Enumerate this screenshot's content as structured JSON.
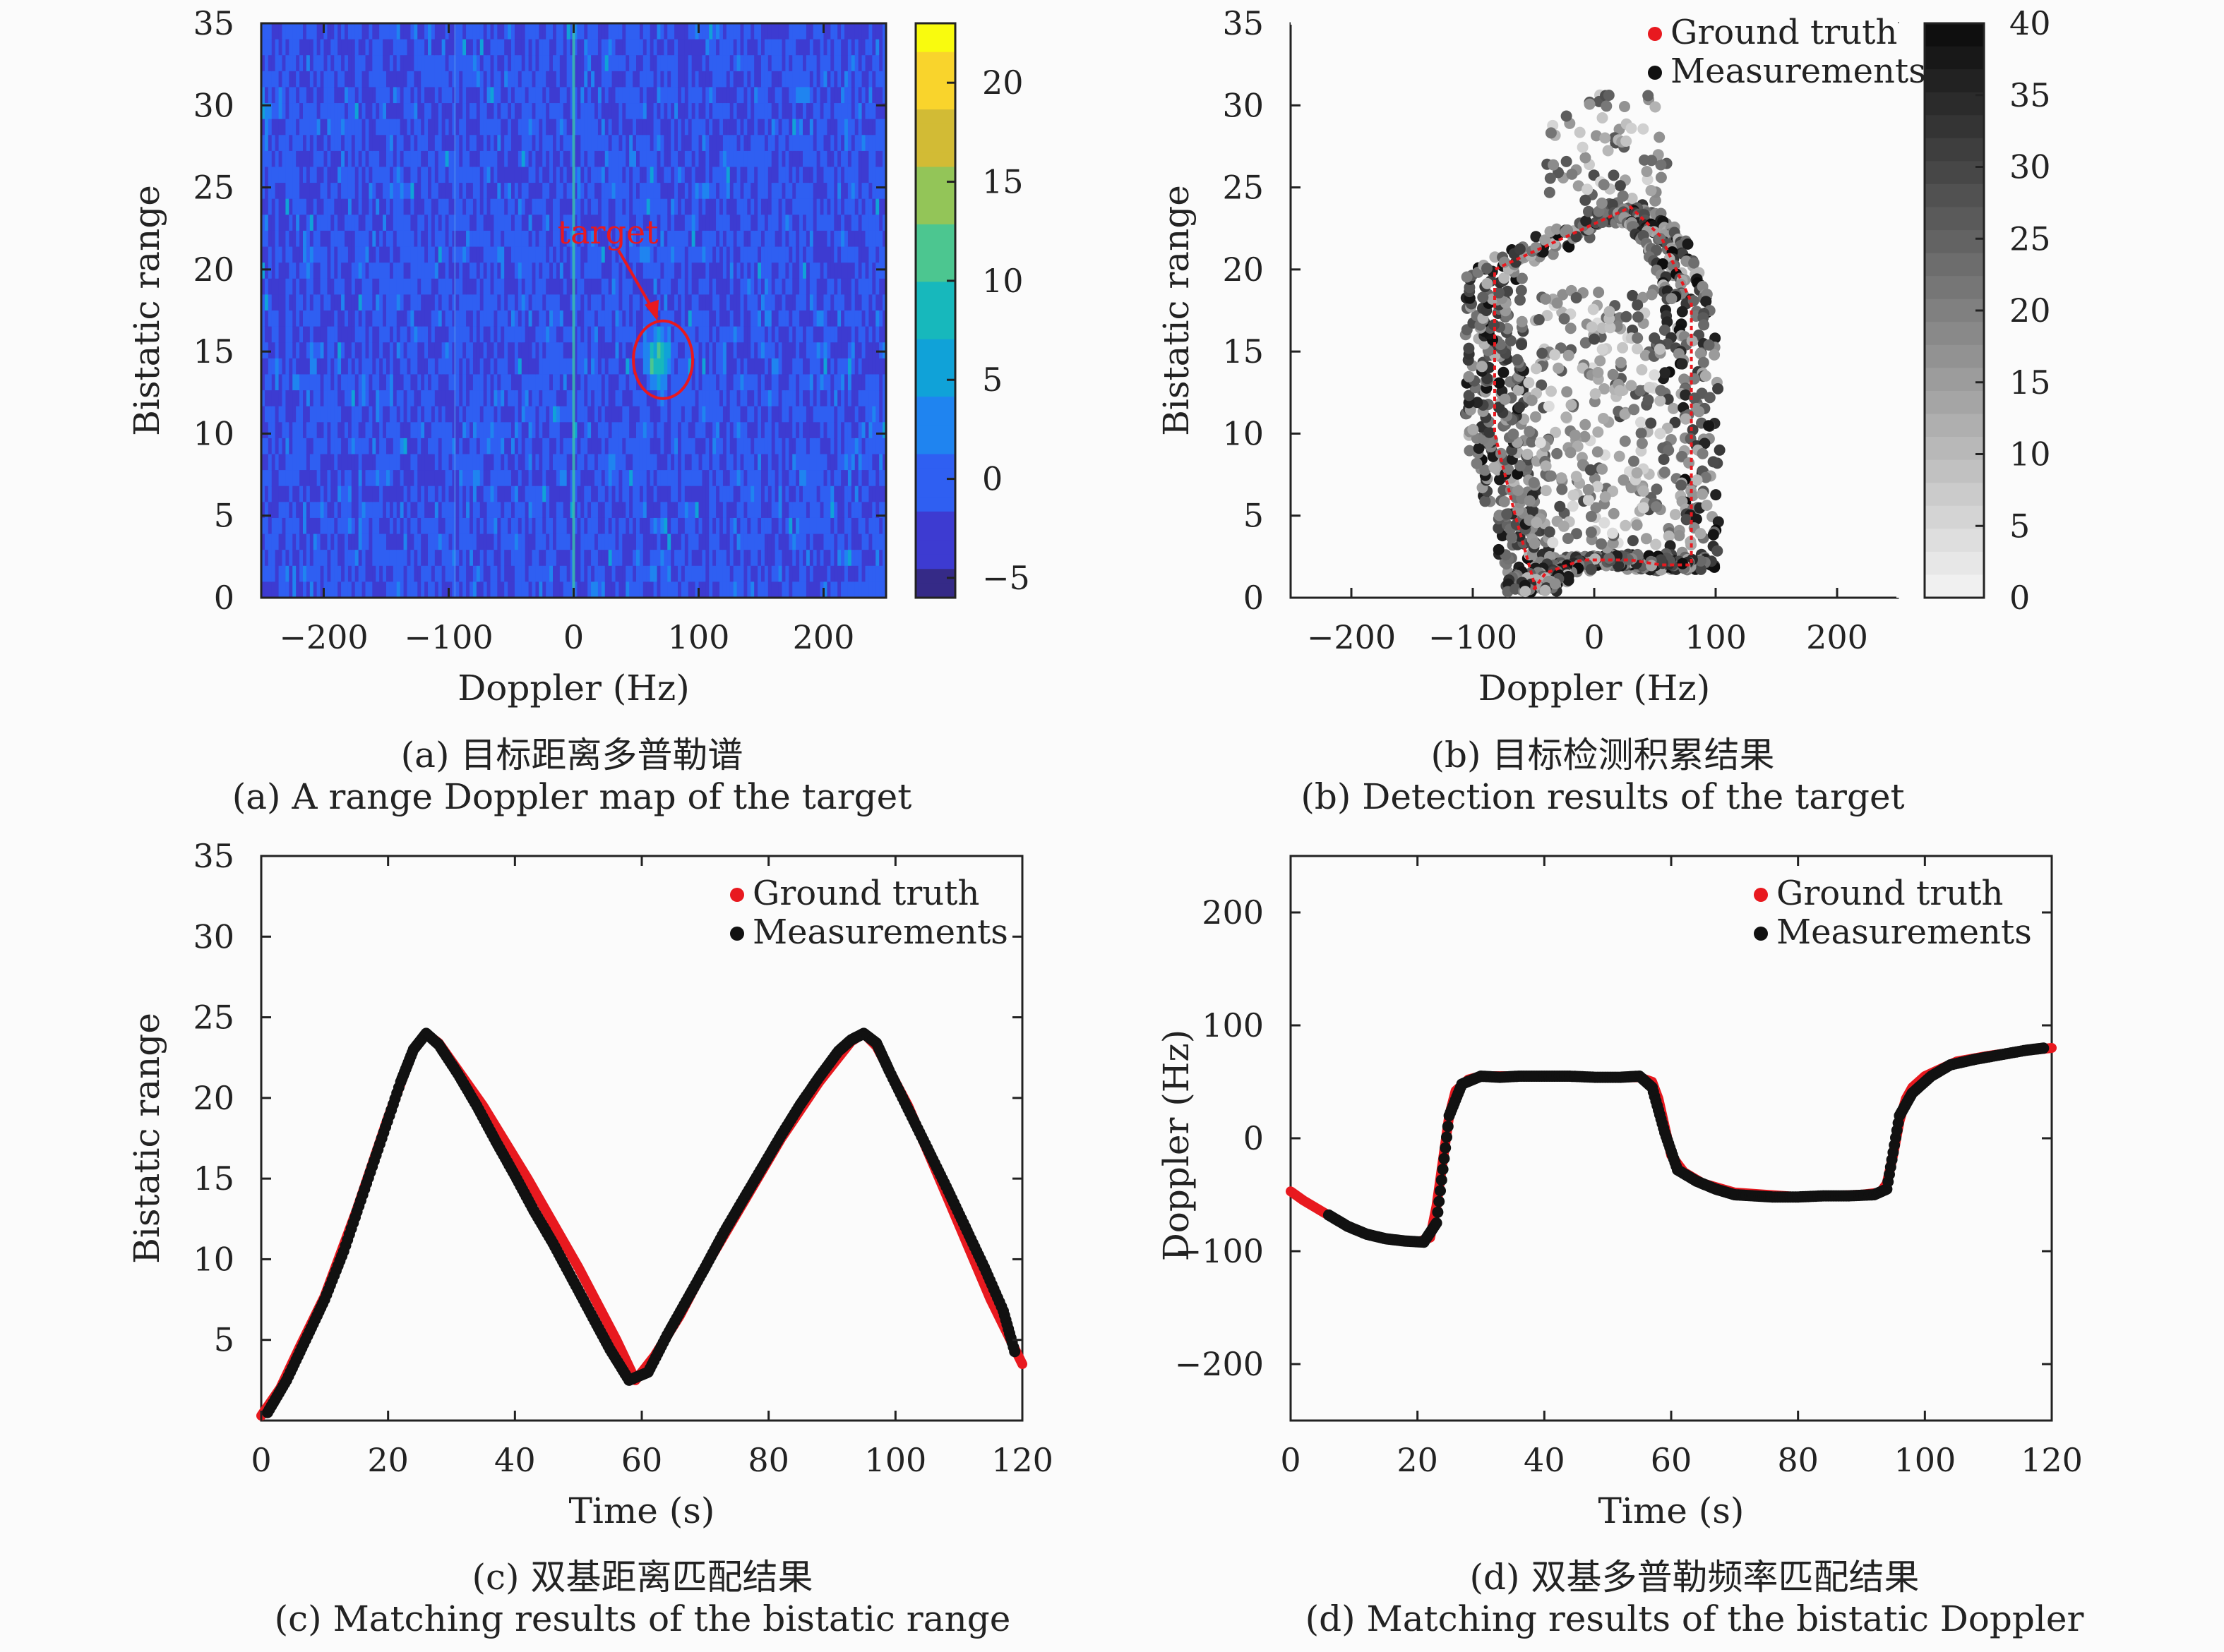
{
  "chart_data": [
    {
      "panel": "a",
      "type": "heatmap",
      "xlabel": "Doppler (Hz)",
      "ylabel": "Bistatic range",
      "xlim": [
        -250,
        250
      ],
      "ylim": [
        0,
        35
      ],
      "xticks": [
        -200,
        -100,
        0,
        100,
        200
      ],
      "yticks": [
        0,
        5,
        10,
        15,
        20,
        25,
        30,
        35
      ],
      "colorbar": {
        "range": [
          -6,
          23
        ],
        "ticks": [
          20,
          15,
          10,
          5,
          0,
          -5
        ],
        "tick_labels": [
          "20",
          "15",
          "10",
          "5",
          "0",
          "−5"
        ],
        "colormap": "parula"
      },
      "annotation": {
        "text": "target",
        "at": [
          67,
          14.5
        ],
        "color": "#e8191f"
      },
      "caption_cn": "(a) 目标距离多普勒谱",
      "caption_en": "(a) A range Doppler map of the target"
    },
    {
      "panel": "b",
      "type": "scatter",
      "xlabel": "Doppler (Hz)",
      "ylabel": "Bistatic range",
      "xlim": [
        -250,
        250
      ],
      "ylim": [
        0,
        35
      ],
      "xticks": [
        -200,
        -100,
        0,
        100,
        200
      ],
      "yticks": [
        0,
        5,
        10,
        15,
        20,
        25,
        30,
        35
      ],
      "colorbar": {
        "range": [
          0,
          40
        ],
        "ticks": [
          40,
          35,
          30,
          25,
          20,
          15,
          10,
          5,
          0
        ],
        "colormap": "gray-reversed"
      },
      "legend": {
        "position": "top-right",
        "entries": [
          {
            "label": "Ground truth",
            "color": "#e8191f"
          },
          {
            "label": "Measurements",
            "color": "#111111"
          }
        ]
      },
      "ground_truth_path": {
        "x": [
          -48,
          -65,
          -82,
          -82,
          -82,
          30,
          55,
          80,
          80,
          80,
          55,
          30,
          -10,
          -40,
          -50
        ],
        "y": [
          0.5,
          5,
          10,
          15,
          20,
          23.8,
          22,
          18,
          10,
          2,
          2,
          2.3,
          2.3,
          1.5,
          0.5
        ]
      },
      "caption_cn": "(b) 目标检测积累结果",
      "caption_en": "(b) Detection results of the target"
    },
    {
      "panel": "c",
      "type": "line",
      "xlabel": "Time (s)",
      "ylabel": "Bistatic range",
      "xlim": [
        0,
        120
      ],
      "ylim": [
        0,
        35
      ],
      "xticks": [
        0,
        20,
        40,
        60,
        80,
        100,
        120
      ],
      "yticks": [
        5,
        10,
        15,
        20,
        25,
        30,
        35
      ],
      "legend": {
        "position": "top-right",
        "entries": [
          {
            "label": "Ground truth",
            "color": "#e8191f"
          },
          {
            "label": "Measurements",
            "color": "#111111"
          }
        ]
      },
      "series": [
        {
          "name": "Ground truth",
          "x": [
            0,
            3,
            6,
            10,
            15,
            20,
            24,
            26,
            28,
            35,
            42,
            50,
            56,
            59,
            62,
            66,
            70,
            76,
            82,
            88,
            93,
            95,
            97,
            102,
            108,
            115,
            120
          ],
          "y": [
            0.3,
            2,
            4.5,
            7.7,
            13,
            18.8,
            23,
            24,
            23.4,
            19.5,
            15,
            9.5,
            5,
            2.5,
            4,
            6.5,
            9.5,
            13.5,
            17.5,
            21,
            23.5,
            24,
            23.2,
            19.5,
            14,
            7.5,
            3.5
          ]
        },
        {
          "name": "Measurements",
          "x": [
            1,
            4,
            7,
            10,
            13,
            16,
            19,
            22,
            24,
            26,
            28,
            31,
            34,
            37,
            40,
            43,
            46,
            49,
            52,
            55,
            58,
            61,
            64,
            67,
            70,
            73,
            76,
            79,
            82,
            85,
            88,
            91,
            93,
            95,
            97,
            99,
            102,
            105,
            108,
            111,
            114,
            117,
            119
          ],
          "y": [
            0.5,
            2.5,
            5,
            7.5,
            10.5,
            14,
            17.5,
            21,
            23,
            24,
            23.3,
            21.5,
            19.5,
            17.3,
            15.2,
            13,
            11,
            8.8,
            6.6,
            4.4,
            2.5,
            3,
            5.3,
            7.4,
            9.5,
            11.7,
            13.7,
            15.7,
            17.7,
            19.6,
            21.3,
            22.9,
            23.6,
            24,
            23.4,
            21.7,
            19.3,
            16.9,
            14.5,
            12,
            9.5,
            6.8,
            4
          ]
        }
      ],
      "caption_cn": "(c) 双基距离匹配结果",
      "caption_en": "(c) Matching results of the bistatic range"
    },
    {
      "panel": "d",
      "type": "line",
      "xlabel": "Time (s)",
      "ylabel": "Doppler (Hz)",
      "xlim": [
        0,
        120
      ],
      "ylim": [
        -250,
        250
      ],
      "xticks": [
        0,
        20,
        40,
        60,
        80,
        100,
        120
      ],
      "yticks": [
        200,
        100,
        0,
        -100,
        -200
      ],
      "ytick_labels": [
        "200",
        "100",
        "0",
        "−100",
        "−200"
      ],
      "legend": {
        "position": "top-right",
        "entries": [
          {
            "label": "Ground truth",
            "color": "#e8191f"
          },
          {
            "label": "Measurements",
            "color": "#111111"
          }
        ]
      },
      "series": [
        {
          "name": "Ground truth",
          "x": [
            0,
            2,
            5,
            8,
            12,
            16,
            20,
            22,
            23,
            24,
            25,
            26,
            28,
            30,
            40,
            50,
            55,
            57,
            58,
            59,
            60,
            62,
            65,
            70,
            80,
            90,
            93,
            94,
            95,
            96,
            97,
            98,
            100,
            105,
            110,
            115,
            120
          ],
          "y": [
            -47,
            -55,
            -65,
            -75,
            -85,
            -90,
            -92,
            -88,
            -60,
            -20,
            20,
            42,
            52,
            55,
            55,
            54,
            54,
            50,
            35,
            10,
            -15,
            -30,
            -40,
            -48,
            -52,
            -50,
            -48,
            -40,
            -15,
            15,
            35,
            45,
            55,
            68,
            73,
            77,
            80
          ]
        },
        {
          "name": "Measurements",
          "x": [
            6,
            9,
            12,
            15,
            18,
            21,
            23,
            25,
            27,
            30,
            33,
            36,
            40,
            44,
            48,
            52,
            55,
            57,
            59,
            61,
            64,
            67,
            70,
            73,
            76,
            80,
            84,
            88,
            92,
            94,
            96,
            98,
            101,
            104,
            108,
            112,
            116,
            119
          ],
          "y": [
            -68,
            -78,
            -85,
            -89,
            -91,
            -92,
            -75,
            20,
            48,
            55,
            54,
            55,
            55,
            55,
            54,
            54,
            55,
            45,
            5,
            -28,
            -38,
            -45,
            -50,
            -51,
            -52,
            -52,
            -51,
            -51,
            -50,
            -45,
            20,
            40,
            55,
            65,
            70,
            74,
            78,
            80
          ]
        }
      ],
      "caption_cn": "(d) 双基多普勒频率匹配结果",
      "caption_en": "(d) Matching results of the bistatic Doppler"
    }
  ],
  "captions": {
    "a_cn": "(a) 目标距离多普勒谱",
    "a_en": "(a) A range Doppler map of the target",
    "b_cn": "(b) 目标检测积累结果",
    "b_en": "(b) Detection results of the target",
    "c_cn": "(c) 双基距离匹配结果",
    "c_en": "(c) Matching results of the bistatic range",
    "d_cn": "(d) 双基多普勒频率匹配结果",
    "d_en": "(d) Matching results of the bistatic Doppler"
  }
}
